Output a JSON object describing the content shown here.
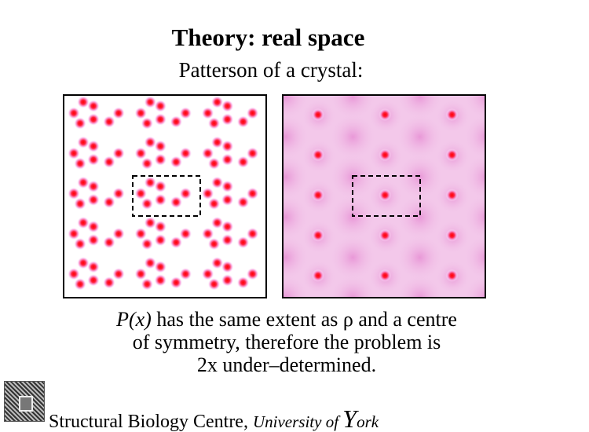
{
  "slide": {
    "title": "Theory: real space",
    "subtitle": "Patterson of a crystal:",
    "caption": {
      "line1_func": "P(x)",
      "line1_rest": " has the same extent as ρ and a centre",
      "line2": "of symmetry, therefore the problem is",
      "line3": "2x under–determined."
    },
    "footer": {
      "org": "Structural Biology Centre, ",
      "university_prefix": "University of ",
      "york_initial": "Y",
      "york_rest": "ork"
    }
  },
  "colors": {
    "spot": "#ff0000",
    "halo": "#f0a0e0",
    "patterson_bg": "#f3c8ea"
  }
}
